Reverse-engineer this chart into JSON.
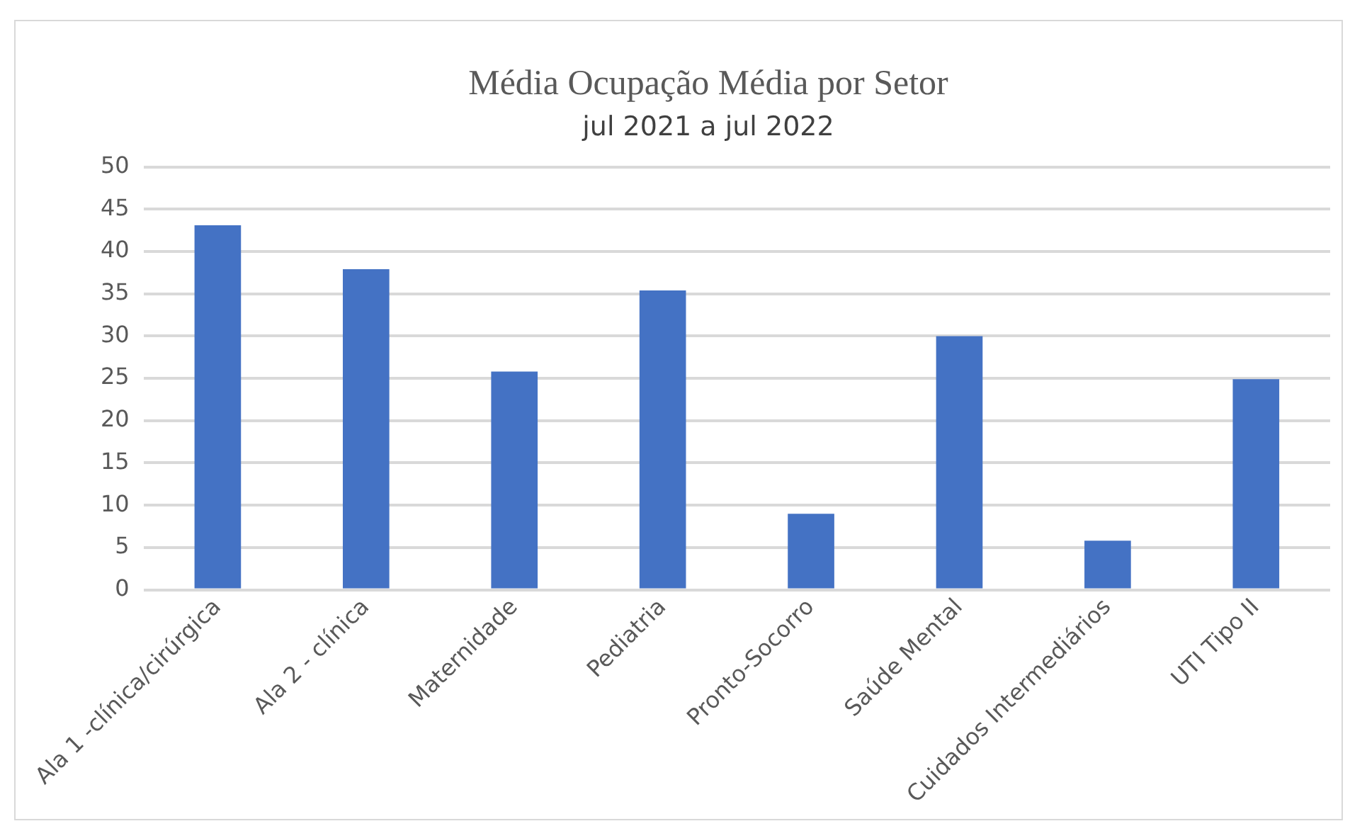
{
  "chart_data": {
    "type": "bar",
    "title": "Média Ocupação Média por Setor",
    "subtitle": "jul 2021 a jul 2022",
    "categories": [
      "Ala 1 -clínica/cirúrgica",
      "Ala 2 - clínica",
      "Maternidade",
      "Pediatria",
      "Pronto-Socorro",
      "Saúde Mental",
      "Cuidados Intermediários",
      "UTI Tipo II"
    ],
    "values": [
      43.1,
      37.9,
      25.8,
      35.4,
      9.0,
      30.0,
      5.8,
      24.9
    ],
    "color": "#4472c4",
    "ylim": [
      0,
      50
    ],
    "yticks": [
      0,
      5,
      10,
      15,
      20,
      25,
      30,
      35,
      40,
      45,
      50
    ],
    "grid": "y"
  }
}
